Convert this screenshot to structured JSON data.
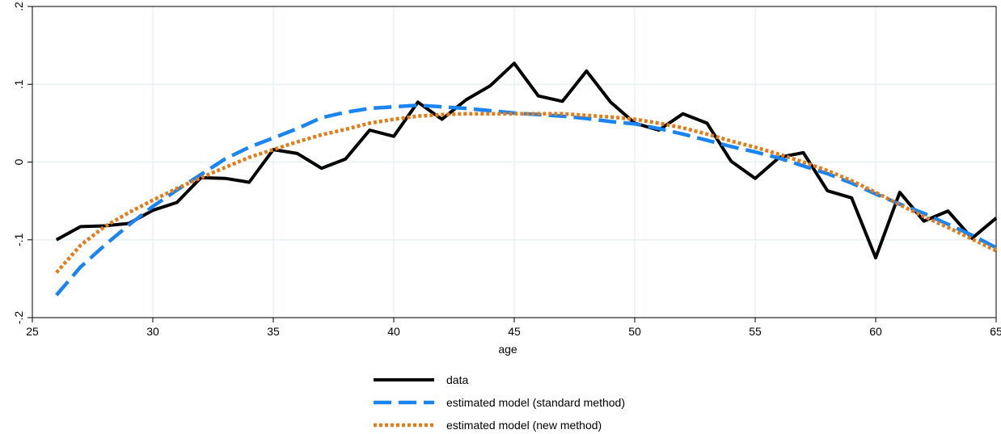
{
  "chart_data": {
    "type": "line",
    "xlabel": "age",
    "ylabel": "",
    "xlim": [
      25,
      65
    ],
    "ylim": [
      -0.2,
      0.2
    ],
    "x_ticks": [
      25,
      30,
      35,
      40,
      45,
      50,
      55,
      60,
      65
    ],
    "x_tick_labels": [
      "25",
      "30",
      "35",
      "40",
      "45",
      "50",
      "55",
      "60",
      "65"
    ],
    "y_ticks": [
      -0.2,
      -0.1,
      0,
      0.1,
      0.2
    ],
    "y_tick_labels": [
      "-.2",
      "-.1",
      "0",
      ".1",
      ".2"
    ],
    "grid": true,
    "legend_position": "bottom",
    "x": [
      26,
      27,
      28,
      29,
      30,
      31,
      32,
      33,
      34,
      35,
      36,
      37,
      38,
      39,
      40,
      41,
      42,
      43,
      44,
      45,
      46,
      47,
      48,
      49,
      50,
      51,
      52,
      53,
      54,
      55,
      56,
      57,
      58,
      59,
      60,
      61,
      62,
      63,
      64,
      65
    ],
    "series": [
      {
        "name": "data",
        "color": "#000000",
        "dash": "solid",
        "values": [
          -0.1,
          -0.083,
          -0.082,
          -0.079,
          -0.062,
          -0.052,
          -0.02,
          -0.021,
          -0.026,
          0.016,
          0.011,
          -0.008,
          0.004,
          0.041,
          0.033,
          0.077,
          0.055,
          0.08,
          0.098,
          0.127,
          0.085,
          0.078,
          0.117,
          0.077,
          0.05,
          0.041,
          0.062,
          0.05,
          0.001,
          -0.021,
          0.006,
          0.012,
          -0.037,
          -0.046,
          -0.123,
          -0.039,
          -0.076,
          -0.063,
          -0.098,
          -0.072
        ]
      },
      {
        "name": "estimated model (standard method)",
        "color": "#1a85f2",
        "dash": "long-dash",
        "values": [
          -0.171,
          -0.135,
          -0.107,
          -0.081,
          -0.057,
          -0.036,
          -0.016,
          0.004,
          0.019,
          0.031,
          0.043,
          0.057,
          0.064,
          0.069,
          0.071,
          0.073,
          0.071,
          0.069,
          0.066,
          0.063,
          0.061,
          0.059,
          0.056,
          0.052,
          0.049,
          0.043,
          0.036,
          0.028,
          0.02,
          0.013,
          0.005,
          -0.005,
          -0.015,
          -0.027,
          -0.041,
          -0.054,
          -0.066,
          -0.08,
          -0.094,
          -0.11
        ]
      },
      {
        "name": "estimated model (new method)",
        "color": "#e07d1a",
        "dash": "dotted",
        "values": [
          -0.142,
          -0.107,
          -0.083,
          -0.065,
          -0.049,
          -0.034,
          -0.02,
          -0.007,
          0.006,
          0.016,
          0.026,
          0.035,
          0.042,
          0.05,
          0.055,
          0.059,
          0.061,
          0.062,
          0.062,
          0.062,
          0.062,
          0.062,
          0.06,
          0.058,
          0.055,
          0.05,
          0.044,
          0.036,
          0.027,
          0.019,
          0.01,
          0.0,
          -0.011,
          -0.024,
          -0.039,
          -0.055,
          -0.07,
          -0.084,
          -0.099,
          -0.114
        ]
      }
    ]
  }
}
